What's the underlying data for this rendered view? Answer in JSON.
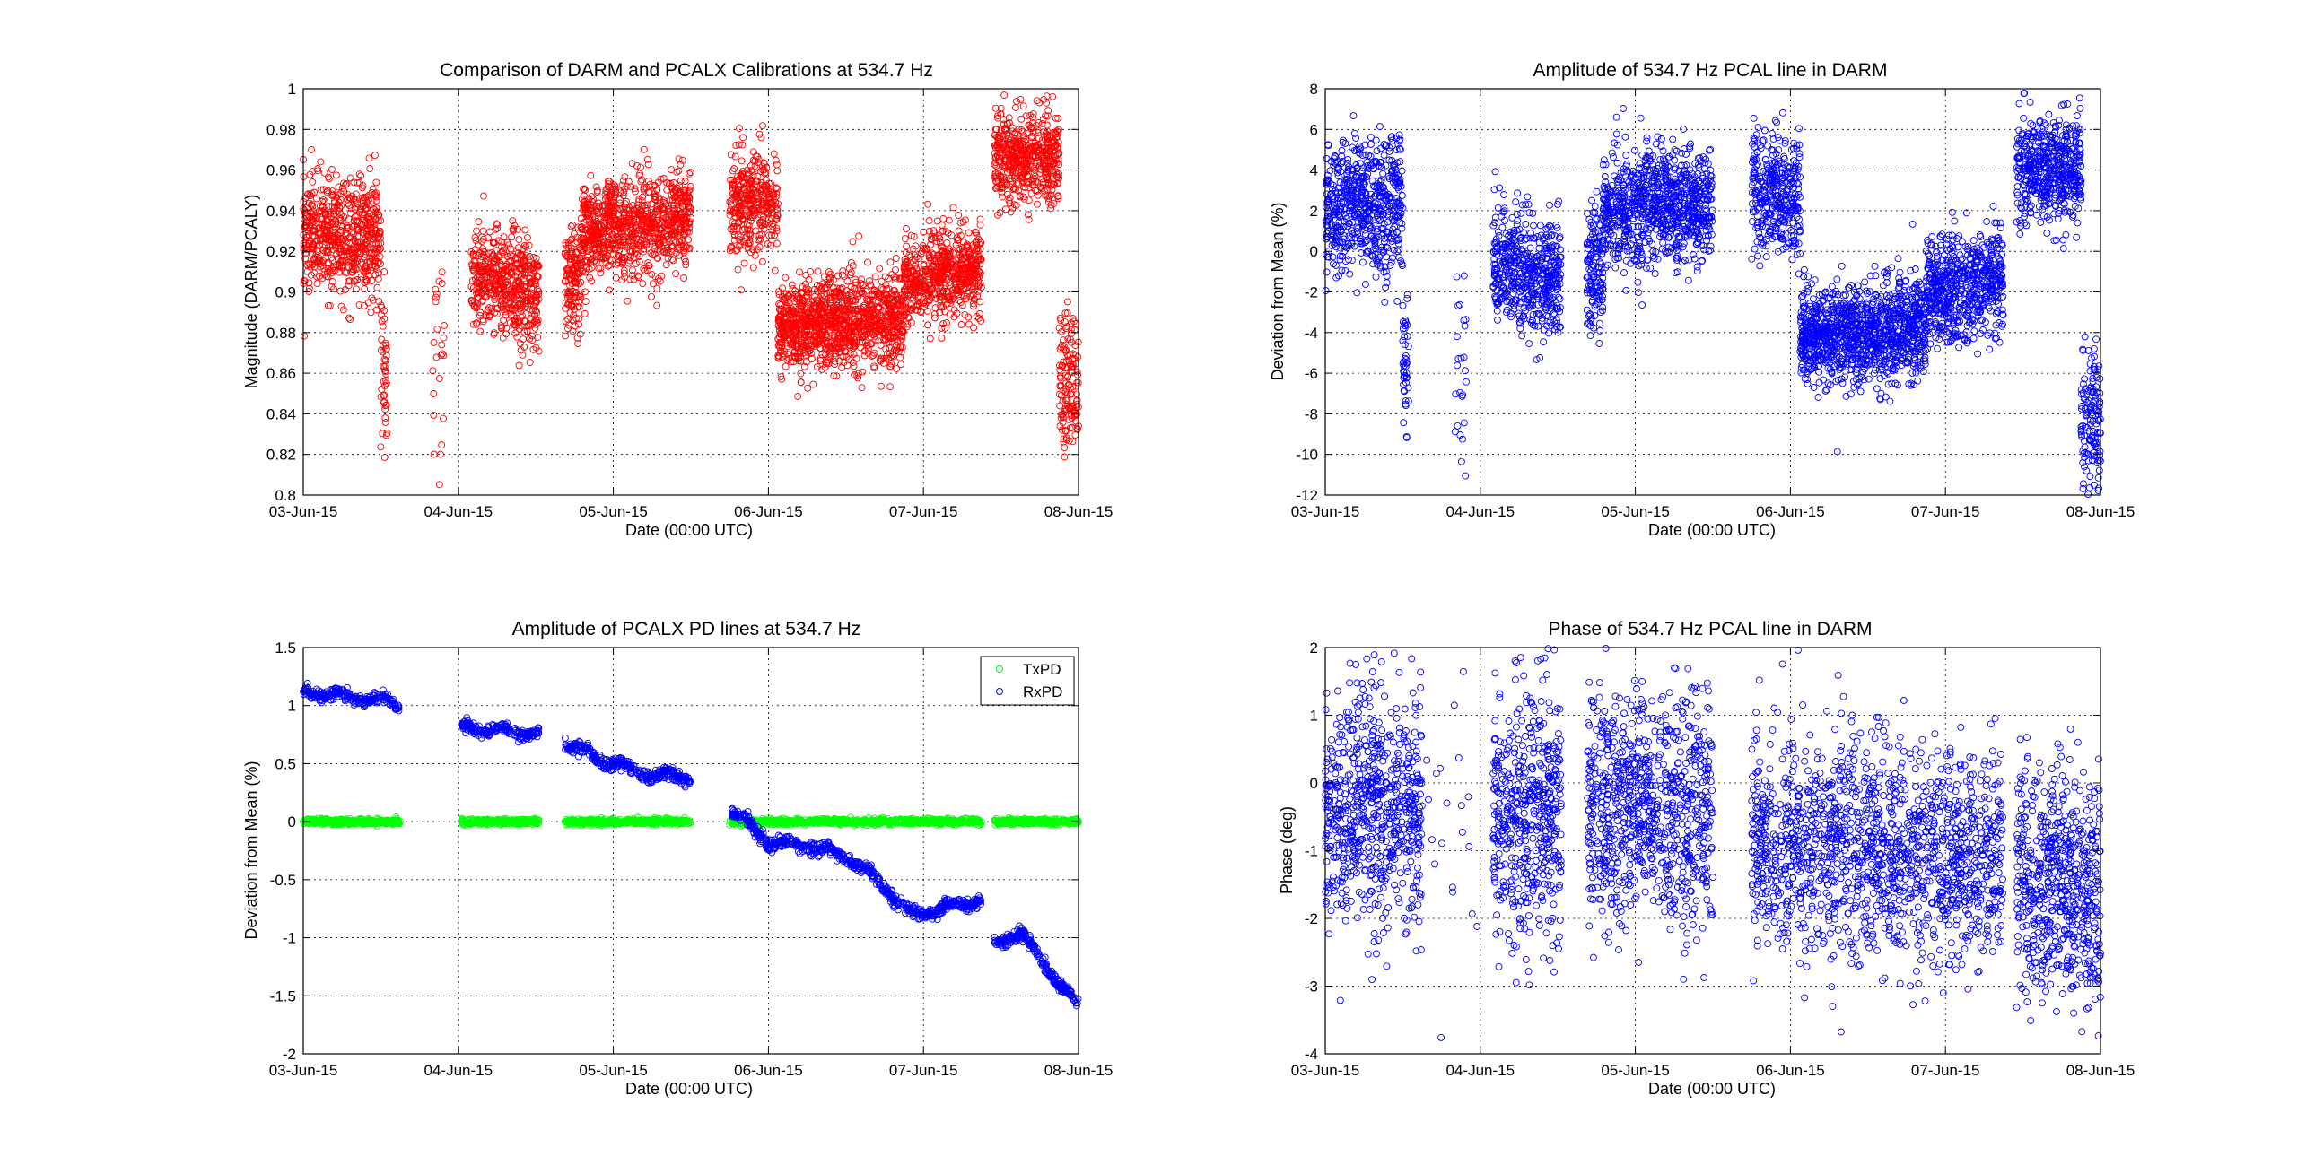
{
  "figure": {
    "background": "#ffffff"
  },
  "chart_data": [
    {
      "type": "scatter",
      "title": "Comparison of DARM and PCALX Calibrations at 534.7 Hz",
      "xlabel": "Date (00:00 UTC)",
      "ylabel": "Magnitude (DARM/PCALY)",
      "x_ticks": [
        "03-Jun-15",
        "04-Jun-15",
        "05-Jun-15",
        "06-Jun-15",
        "07-Jun-15",
        "08-Jun-15"
      ],
      "xlim": [
        "03-Jun-15",
        "08-Jun-15"
      ],
      "ylim": [
        0.8,
        1.0
      ],
      "y_ticks": [
        0.8,
        0.82,
        0.84,
        0.86,
        0.88,
        0.9,
        0.92,
        0.94,
        0.96,
        0.98,
        1
      ],
      "grid": true,
      "marker": "o",
      "series": [
        {
          "color": "#ff0000",
          "segments": [
            {
              "start": "2015-06-03 00:00",
              "end": "2015-06-03 12:00",
              "mean": 0.927,
              "spread": 0.014,
              "n": 620,
              "slope": 0.0
            },
            {
              "start": "2015-06-03 12:00",
              "end": "2015-06-03 13:00",
              "mean": 0.86,
              "spread": 0.02,
              "n": 45,
              "slope": 0.0
            },
            {
              "start": "2015-06-03 20:00",
              "end": "2015-06-03 22:00",
              "mean": 0.86,
              "spread": 0.03,
              "n": 25,
              "slope": 0.0
            },
            {
              "start": "2015-06-04 02:00",
              "end": "2015-06-04 12:30",
              "mean": 0.903,
              "spread": 0.013,
              "n": 520,
              "slope": -0.01
            },
            {
              "start": "2015-06-04 16:30",
              "end": "2015-06-04 19:00",
              "mean": 0.906,
              "spread": 0.012,
              "n": 140,
              "slope": 0.0
            },
            {
              "start": "2015-06-04 19:00",
              "end": "2015-06-05 12:00",
              "mean": 0.932,
              "spread": 0.012,
              "n": 880,
              "slope": 0.006
            },
            {
              "start": "2015-06-05 18:00",
              "end": "2015-06-06 01:30",
              "mean": 0.945,
              "spread": 0.013,
              "n": 360,
              "slope": 0.0
            },
            {
              "start": "2015-06-06 01:30",
              "end": "2015-06-06 21:00",
              "mean": 0.885,
              "spread": 0.011,
              "n": 1150,
              "slope": 0.006
            },
            {
              "start": "2015-06-06 21:00",
              "end": "2015-06-07 09:00",
              "mean": 0.908,
              "spread": 0.011,
              "n": 620,
              "slope": 0.006
            },
            {
              "start": "2015-06-07 11:00",
              "end": "2015-06-07 21:00",
              "mean": 0.966,
              "spread": 0.011,
              "n": 520,
              "slope": 0.0
            },
            {
              "start": "2015-06-07 21:00",
              "end": "2015-06-08 00:00",
              "mean": 0.855,
              "spread": 0.018,
              "n": 140,
              "slope": 0.0
            }
          ]
        }
      ]
    },
    {
      "type": "scatter",
      "title": "Amplitude of 534.7 Hz PCAL line in DARM",
      "xlabel": "Date (00:00 UTC)",
      "ylabel": "Deviation from Mean (%)",
      "x_ticks": [
        "03-Jun-15",
        "04-Jun-15",
        "05-Jun-15",
        "06-Jun-15",
        "07-Jun-15",
        "08-Jun-15"
      ],
      "xlim": [
        "03-Jun-15",
        "08-Jun-15"
      ],
      "ylim": [
        -12,
        8
      ],
      "y_ticks": [
        -12,
        -10,
        -8,
        -6,
        -4,
        -2,
        0,
        2,
        4,
        6,
        8
      ],
      "grid": true,
      "marker": "o",
      "series": [
        {
          "color": "#0000ff",
          "segments": [
            {
              "start": "2015-06-03 00:00",
              "end": "2015-06-03 12:00",
              "mean": 2.2,
              "spread": 1.6,
              "n": 620,
              "slope": 0.0
            },
            {
              "start": "2015-06-03 12:00",
              "end": "2015-06-03 13:00",
              "mean": -5.5,
              "spread": 1.5,
              "n": 45,
              "slope": 0.0
            },
            {
              "start": "2015-06-03 20:00",
              "end": "2015-06-03 22:00",
              "mean": -6.0,
              "spread": 3.0,
              "n": 25,
              "slope": 0.0
            },
            {
              "start": "2015-06-04 02:00",
              "end": "2015-06-04 12:30",
              "mean": -1.0,
              "spread": 1.5,
              "n": 520,
              "slope": -1.0
            },
            {
              "start": "2015-06-04 16:30",
              "end": "2015-06-04 19:00",
              "mean": -1.0,
              "spread": 1.4,
              "n": 140,
              "slope": 0.0
            },
            {
              "start": "2015-06-04 19:00",
              "end": "2015-06-05 12:00",
              "mean": 2.2,
              "spread": 1.4,
              "n": 880,
              "slope": 0.6
            },
            {
              "start": "2015-06-05 18:00",
              "end": "2015-06-06 01:30",
              "mean": 2.8,
              "spread": 1.4,
              "n": 360,
              "slope": 0.0
            },
            {
              "start": "2015-06-06 01:30",
              "end": "2015-06-06 21:00",
              "mean": -4.0,
              "spread": 1.2,
              "n": 1150,
              "slope": 0.5
            },
            {
              "start": "2015-06-06 21:00",
              "end": "2015-06-07 09:00",
              "mean": -1.7,
              "spread": 1.3,
              "n": 620,
              "slope": 0.6
            },
            {
              "start": "2015-06-07 11:00",
              "end": "2015-06-07 21:00",
              "mean": 4.0,
              "spread": 1.3,
              "n": 520,
              "slope": 0.0
            },
            {
              "start": "2015-06-07 21:00",
              "end": "2015-06-08 00:00",
              "mean": -8.3,
              "spread": 2.0,
              "n": 140,
              "slope": 0.0
            }
          ]
        }
      ]
    },
    {
      "type": "scatter",
      "title": "Amplitude of PCALX PD lines at 534.7 Hz",
      "xlabel": "Date (00:00 UTC)",
      "ylabel": "Deviation from Mean (%)",
      "x_ticks": [
        "03-Jun-15",
        "04-Jun-15",
        "05-Jun-15",
        "06-Jun-15",
        "07-Jun-15",
        "08-Jun-15"
      ],
      "xlim": [
        "03-Jun-15",
        "08-Jun-15"
      ],
      "ylim": [
        -2,
        1.5
      ],
      "y_ticks": [
        -2,
        -1.5,
        -1,
        -0.5,
        0,
        0.5,
        1,
        1.5
      ],
      "y_tick_labels": [
        "-2",
        "-1.5",
        "-1",
        "-0.5",
        "0",
        "0.5",
        "1",
        "1.5"
      ],
      "grid": true,
      "marker": "o",
      "legend": {
        "position": "top-right",
        "entries": [
          "TxPD",
          "RxPD"
        ]
      },
      "series": [
        {
          "name": "TxPD",
          "color": "#00ff00",
          "segments": [
            {
              "start": "2015-06-03 00:00",
              "end": "2015-06-03 15:00",
              "mean": 0.0,
              "spread": 0.012,
              "n": 320,
              "slope": 0.0
            },
            {
              "start": "2015-06-04 00:30",
              "end": "2015-06-04 12:30",
              "mean": 0.0,
              "spread": 0.012,
              "n": 260,
              "slope": 0.0
            },
            {
              "start": "2015-06-04 16:30",
              "end": "2015-06-05 12:00",
              "mean": 0.0,
              "spread": 0.012,
              "n": 420,
              "slope": 0.0
            },
            {
              "start": "2015-06-05 18:00",
              "end": "2015-06-07 09:00",
              "mean": 0.0,
              "spread": 0.012,
              "n": 800,
              "slope": 0.0
            },
            {
              "start": "2015-06-07 11:00",
              "end": "2015-06-08 00:00",
              "mean": 0.0,
              "spread": 0.012,
              "n": 280,
              "slope": 0.0
            }
          ]
        },
        {
          "name": "RxPD",
          "color": "#0000ff",
          "trend": [
            {
              "t": "2015-06-03 00:00",
              "v": 1.12
            },
            {
              "t": "2015-06-03 06:00",
              "v": 1.08
            },
            {
              "t": "2015-06-03 12:00",
              "v": 1.05
            },
            {
              "t": "2015-06-03 15:00",
              "v": 1.0
            },
            {
              "t": "2015-06-04 00:30",
              "v": 0.81
            },
            {
              "t": "2015-06-04 12:30",
              "v": 0.76
            },
            {
              "t": "2015-06-04 16:30",
              "v": 0.68
            },
            {
              "t": "2015-06-05 00:00",
              "v": 0.5
            },
            {
              "t": "2015-06-05 06:00",
              "v": 0.4
            },
            {
              "t": "2015-06-05 12:00",
              "v": 0.39
            },
            {
              "t": "2015-06-05 18:00",
              "v": 0.12
            },
            {
              "t": "2015-06-06 00:00",
              "v": -0.18
            },
            {
              "t": "2015-06-06 06:00",
              "v": -0.2
            },
            {
              "t": "2015-06-06 12:00",
              "v": -0.3
            },
            {
              "t": "2015-06-06 18:00",
              "v": -0.55
            },
            {
              "t": "2015-06-06 22:00",
              "v": -0.8
            },
            {
              "t": "2015-06-07 09:00",
              "v": -0.68
            },
            {
              "t": "2015-06-07 11:00",
              "v": -1.05
            },
            {
              "t": "2015-06-07 15:00",
              "v": -0.95
            },
            {
              "t": "2015-06-07 19:00",
              "v": -1.25
            },
            {
              "t": "2015-06-08 00:00",
              "v": -1.6
            }
          ],
          "gaps": [
            [
              "2015-06-03 15:00",
              "2015-06-04 00:30"
            ],
            [
              "2015-06-04 12:30",
              "2015-06-04 16:30"
            ],
            [
              "2015-06-05 12:00",
              "2015-06-05 18:00"
            ],
            [
              "2015-06-07 09:00",
              "2015-06-07 11:00"
            ]
          ],
          "spread": 0.025,
          "n": 2000
        }
      ]
    },
    {
      "type": "scatter",
      "title": "Phase of 534.7 Hz PCAL line in DARM",
      "xlabel": "Date (00:00 UTC)",
      "ylabel": "Phase (deg)",
      "x_ticks": [
        "03-Jun-15",
        "04-Jun-15",
        "05-Jun-15",
        "06-Jun-15",
        "07-Jun-15",
        "08-Jun-15"
      ],
      "xlim": [
        "03-Jun-15",
        "08-Jun-15"
      ],
      "ylim": [
        -4,
        2
      ],
      "y_ticks": [
        -4,
        -3,
        -2,
        -1,
        0,
        1,
        2
      ],
      "grid": true,
      "marker": "o",
      "series": [
        {
          "color": "#0000ff",
          "segments": [
            {
              "start": "2015-06-03 00:00",
              "end": "2015-06-03 15:00",
              "mean": -0.4,
              "spread": 0.9,
              "n": 700,
              "slope": 0.0
            },
            {
              "start": "2015-06-03 15:00",
              "end": "2015-06-04 00:30",
              "mean": -0.4,
              "spread": 1.6,
              "n": 20,
              "slope": 0.0
            },
            {
              "start": "2015-06-04 02:00",
              "end": "2015-06-04 12:30",
              "mean": -0.5,
              "spread": 0.9,
              "n": 520,
              "slope": 0.0
            },
            {
              "start": "2015-06-04 16:30",
              "end": "2015-06-05 12:00",
              "mean": -0.4,
              "spread": 0.85,
              "n": 850,
              "slope": 0.0
            },
            {
              "start": "2015-06-05 18:00",
              "end": "2015-06-07 09:00",
              "mean": -1.0,
              "spread": 0.8,
              "n": 1500,
              "slope": -0.3
            },
            {
              "start": "2015-06-07 11:00",
              "end": "2015-06-08 00:00",
              "mean": -1.5,
              "spread": 0.8,
              "n": 620,
              "slope": 0.0
            }
          ]
        }
      ]
    }
  ]
}
